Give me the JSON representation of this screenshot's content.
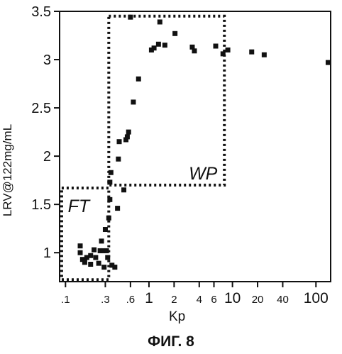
{
  "chart_data": {
    "type": "scatter",
    "title": "",
    "xlabel": "Kp",
    "ylabel": "LRV@122mg/mL",
    "caption": "ФИГ. 8",
    "x_scale": "log",
    "xlim": [
      0.085,
      150
    ],
    "ylim": [
      0.7,
      3.5
    ],
    "x_ticks": [
      {
        "value": 0.1,
        "label": ".1"
      },
      {
        "value": 0.3,
        "label": ".3"
      },
      {
        "value": 0.6,
        "label": ".6"
      },
      {
        "value": 1,
        "label": "1"
      },
      {
        "value": 2,
        "label": "2"
      },
      {
        "value": 4,
        "label": "4"
      },
      {
        "value": 6,
        "label": "6"
      },
      {
        "value": 10,
        "label": "10"
      },
      {
        "value": 20,
        "label": "20"
      },
      {
        "value": 40,
        "label": "40"
      },
      {
        "value": 100,
        "label": "100"
      }
    ],
    "y_ticks": [
      {
        "value": 1,
        "label": "1"
      },
      {
        "value": 1.5,
        "label": "1.5"
      },
      {
        "value": 2,
        "label": "2"
      },
      {
        "value": 2.5,
        "label": "2.5"
      },
      {
        "value": 3,
        "label": "3"
      },
      {
        "value": 3.5,
        "label": "3.5"
      }
    ],
    "regions": [
      {
        "label": "FT",
        "x": [
          0.09,
          0.33
        ],
        "y": [
          0.72,
          1.67
        ]
      },
      {
        "label": "WP",
        "x": [
          0.33,
          8
        ],
        "y": [
          1.7,
          3.45
        ]
      }
    ],
    "series": [
      {
        "points": [
          [
            0.15,
            1.07
          ],
          [
            0.15,
            1.0
          ],
          [
            0.16,
            0.93
          ],
          [
            0.17,
            0.9
          ],
          [
            0.18,
            0.95
          ],
          [
            0.2,
            0.97
          ],
          [
            0.2,
            0.88
          ],
          [
            0.22,
            1.03
          ],
          [
            0.23,
            0.95
          ],
          [
            0.25,
            0.89
          ],
          [
            0.26,
            1.02
          ],
          [
            0.27,
            1.12
          ],
          [
            0.28,
            1.02
          ],
          [
            0.29,
            0.85
          ],
          [
            0.3,
            1.24
          ],
          [
            0.31,
            1.02
          ],
          [
            0.32,
            0.95
          ],
          [
            0.33,
            1.36
          ],
          [
            0.34,
            1.55
          ],
          [
            0.34,
            1.73
          ],
          [
            0.35,
            1.83
          ],
          [
            0.36,
            0.87
          ],
          [
            0.39,
            0.85
          ],
          [
            0.42,
            1.46
          ],
          [
            0.43,
            1.97
          ],
          [
            0.44,
            2.15
          ],
          [
            0.5,
            1.65
          ],
          [
            0.53,
            2.17
          ],
          [
            0.55,
            2.2
          ],
          [
            0.57,
            2.25
          ],
          [
            0.6,
            3.44
          ],
          [
            0.65,
            2.56
          ],
          [
            0.75,
            2.8
          ],
          [
            1.07,
            3.1
          ],
          [
            1.15,
            3.12
          ],
          [
            1.3,
            3.16
          ],
          [
            1.35,
            3.39
          ],
          [
            1.55,
            3.15
          ],
          [
            2.05,
            3.27
          ],
          [
            3.3,
            3.13
          ],
          [
            3.5,
            3.09
          ],
          [
            6.3,
            3.14
          ],
          [
            7.7,
            3.06
          ],
          [
            8.8,
            3.1
          ],
          [
            17,
            3.08
          ],
          [
            24,
            3.05
          ],
          [
            140,
            2.97
          ]
        ]
      }
    ]
  }
}
